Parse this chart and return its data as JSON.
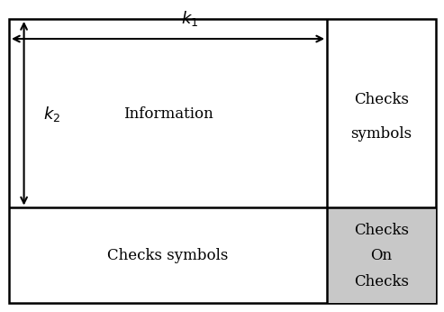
{
  "bg_color": "#ffffff",
  "grid_color": "#000000",
  "gray_color": "#c8c8c8",
  "col_split": 0.745,
  "row_split": 0.335,
  "cells": {
    "top_left_label": "Information",
    "top_right_label1": "Checks",
    "top_right_label2": "symbols",
    "bottom_left_label": "Checks symbols",
    "bottom_right_label1": "Checks",
    "bottom_right_label2": "On",
    "bottom_right_label3": "Checks"
  },
  "arrow_k1_label": "$k_1$",
  "arrow_k2_label": "$k_2$",
  "font_size_main": 12,
  "font_size_arrow": 13,
  "line_width": 1.8
}
